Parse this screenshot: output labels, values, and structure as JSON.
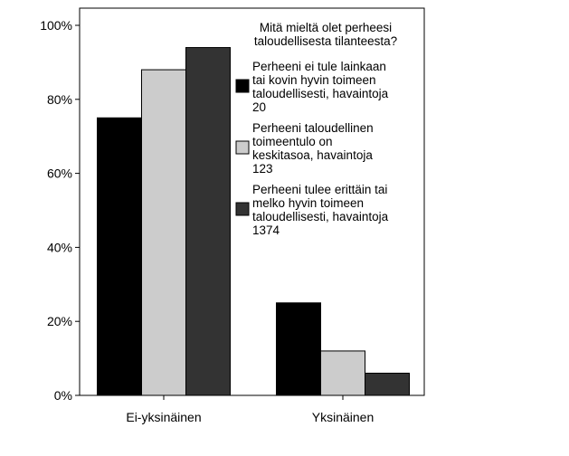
{
  "chart_data": {
    "type": "bar",
    "categories": [
      "Ei-yksinäinen",
      "Yksinäinen"
    ],
    "series": [
      {
        "name": [
          "Perheeni ei tule lainkaan",
          "tai kovin hyvin toimeen",
          "taloudellisesti, havaintoja",
          "20"
        ],
        "color": "#000000",
        "values": [
          75,
          25
        ]
      },
      {
        "name": [
          "Perheeni taloudellinen",
          "toimeentulo on",
          "keskitasoa, havaintoja",
          "123"
        ],
        "color": "#cccccc",
        "values": [
          88,
          12
        ]
      },
      {
        "name": [
          "Perheeni tulee erittäin tai",
          "melko hyvin toimeen",
          "taloudellisesti, havaintoja",
          "1374"
        ],
        "color": "#333333",
        "values": [
          94,
          6
        ]
      }
    ],
    "legend_title": [
      "Mitä mieltä olet perheesi",
      "taloudellisesta tilanteesta?"
    ],
    "legend_position": "top-right",
    "y_ticks": [
      "0%",
      "20%",
      "40%",
      "60%",
      "80%",
      "100%"
    ],
    "ylim": [
      0,
      100
    ],
    "grid": false
  }
}
